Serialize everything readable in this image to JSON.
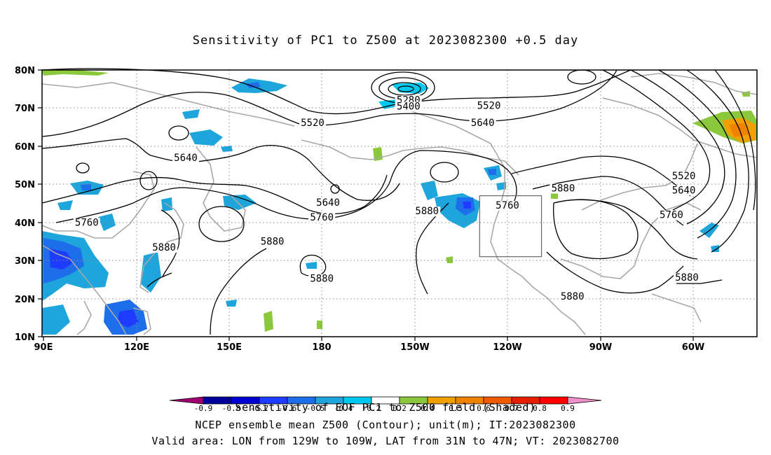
{
  "title": "Sensitivity of PC1 to Z500 at 2023082300 +0.5 day",
  "captions": {
    "line1": "Sensitivity of EOF PC1 to Z500 field (Shaded)",
    "line2": "NCEP ensemble mean Z500 (Contour); unit(m); IT:2023082300",
    "line3": "Valid area: LON from 129W to 109W, LAT from 31N to 47N; VT: 2023082700"
  },
  "map": {
    "lon_range": [
      "90E",
      "45W"
    ],
    "lat_range": [
      "10N",
      "80N"
    ],
    "lat_labels": [
      "80N",
      "70N",
      "60N",
      "50N",
      "40N",
      "30N",
      "20N",
      "10N"
    ],
    "lon_labels": [
      "90E",
      "120E",
      "150E",
      "180",
      "150W",
      "120W",
      "90W",
      "60W"
    ],
    "contour_labels": [
      {
        "text": "5280",
        "lon": -152,
        "lat": 71.5
      },
      {
        "text": "5400",
        "lon": -152,
        "lat": 69.8
      },
      {
        "text": "5520",
        "lon": 177,
        "lat": 65.5
      },
      {
        "text": "5520",
        "lon": -126,
        "lat": 70
      },
      {
        "text": "5640",
        "lon": -128,
        "lat": 65.5
      },
      {
        "text": "5640",
        "lon": 136,
        "lat": 56.3
      },
      {
        "text": "5640",
        "lon": -178,
        "lat": 44.5
      },
      {
        "text": "5760",
        "lon": -180,
        "lat": 40.7
      },
      {
        "text": "5760",
        "lon": 104,
        "lat": 39.3
      },
      {
        "text": "5760",
        "lon": -120,
        "lat": 43.8
      },
      {
        "text": "5880",
        "lon": -146,
        "lat": 42.3
      },
      {
        "text": "5880",
        "lon": -102,
        "lat": 48.3
      },
      {
        "text": "5880",
        "lon": 129,
        "lat": 32.8
      },
      {
        "text": "5880",
        "lon": 164,
        "lat": 34.3
      },
      {
        "text": "5880",
        "lon": 180,
        "lat": 24.6
      },
      {
        "text": "5880",
        "lon": -99,
        "lat": 19.9
      },
      {
        "text": "5880",
        "lon": -62,
        "lat": 24.9
      },
      {
        "text": "5520",
        "lon": -63,
        "lat": 51.5
      },
      {
        "text": "5640",
        "lon": -63,
        "lat": 47.8
      },
      {
        "text": "5760",
        "lon": -67,
        "lat": 41.3
      }
    ],
    "valid_area": {
      "lon_min": -129,
      "lon_max": -109,
      "lat_min": 31,
      "lat_max": 47
    }
  },
  "colorbar": {
    "labels": [
      "-0.9",
      "-0.8",
      "-0.7",
      "-0.6",
      "-0.5",
      "-0.4",
      "-0.2",
      "0.2",
      "0.4",
      "0.5",
      "0.6",
      "0.7",
      "0.8",
      "0.9"
    ],
    "colors": [
      "#a0006e",
      "#00009b",
      "#0000d2",
      "#1e3cff",
      "#1e6eeb",
      "#1ea5dc",
      "#00c8f0",
      "#ffffff",
      "#8cc83c",
      "#f0a000",
      "#f08200",
      "#f05a00",
      "#e61e00",
      "#ff0000",
      "#f090c8"
    ]
  }
}
